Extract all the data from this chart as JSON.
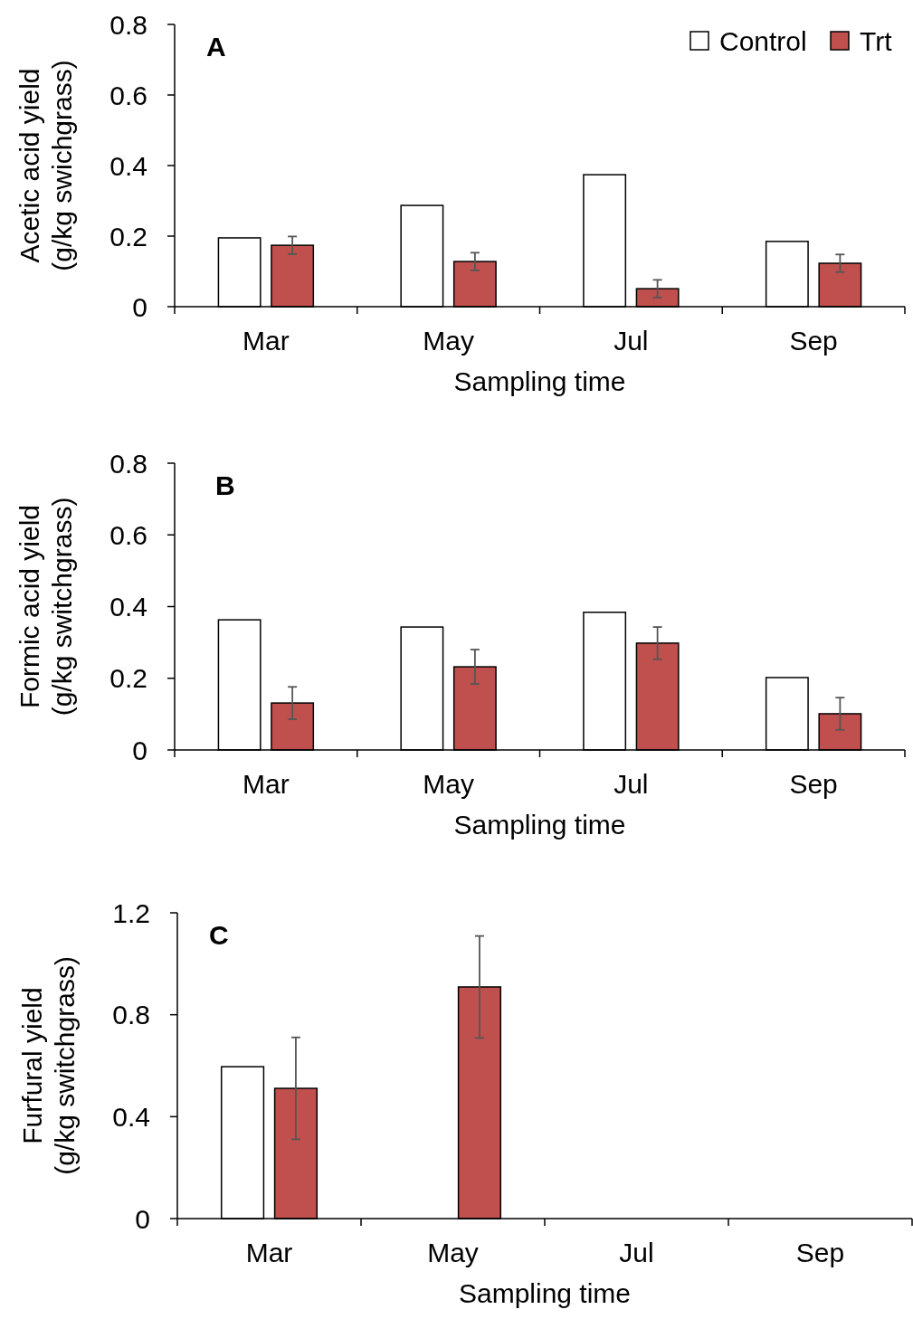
{
  "chart_data": [
    {
      "type": "bar",
      "title": "A",
      "xlabel": "Sampling time",
      "ylabel": "Acetic acid yield\n(g/kg swichgrass)",
      "categories": [
        "Mar",
        "May",
        "Jul",
        "Sep"
      ],
      "ylim": [
        0,
        0.8
      ],
      "yticks": [
        0,
        0.2,
        0.4,
        0.6,
        0.8
      ],
      "legend": "top right",
      "grid": false,
      "series": [
        {
          "name": "Control",
          "color": "#ffffff",
          "values": [
            0.195,
            0.287,
            0.374,
            0.185
          ]
        },
        {
          "name": "Trt",
          "color": "#c0504d",
          "values": [
            0.174,
            0.128,
            0.051,
            0.123
          ],
          "errors": [
            0.025,
            0.025,
            0.025,
            0.025
          ]
        }
      ]
    },
    {
      "type": "bar",
      "title": "B",
      "xlabel": "Sampling time",
      "ylabel": "Formic acid yield\n(g/kg switchgrass)",
      "categories": [
        "Mar",
        "May",
        "Jul",
        "Sep"
      ],
      "ylim": [
        0,
        0.8
      ],
      "yticks": [
        0,
        0.2,
        0.4,
        0.6,
        0.8
      ],
      "grid": false,
      "series": [
        {
          "color": "#ffffff",
          "values": [
            0.363,
            0.343,
            0.384,
            0.202
          ]
        },
        {
          "color": "#c0504d",
          "values": [
            0.131,
            0.232,
            0.298,
            0.101
          ],
          "errors": [
            0.045,
            0.048,
            0.045,
            0.045
          ]
        }
      ]
    },
    {
      "type": "bar",
      "title": "C",
      "xlabel": "Sampling time",
      "ylabel": "Furfural yield\n(g/kg switchgrass)",
      "categories": [
        "Mar",
        "May",
        "Jul",
        "Sep"
      ],
      "ylim": [
        0,
        1.2
      ],
      "yticks": [
        0,
        0.4,
        0.8,
        1.2
      ],
      "grid": false,
      "series": [
        {
          "color": "#ffffff",
          "values": [
            0.596,
            null,
            null,
            null
          ]
        },
        {
          "color": "#c0504d",
          "values": [
            0.511,
            0.909,
            null,
            null
          ],
          "errors": [
            0.2,
            0.2,
            null,
            null
          ]
        }
      ]
    }
  ]
}
